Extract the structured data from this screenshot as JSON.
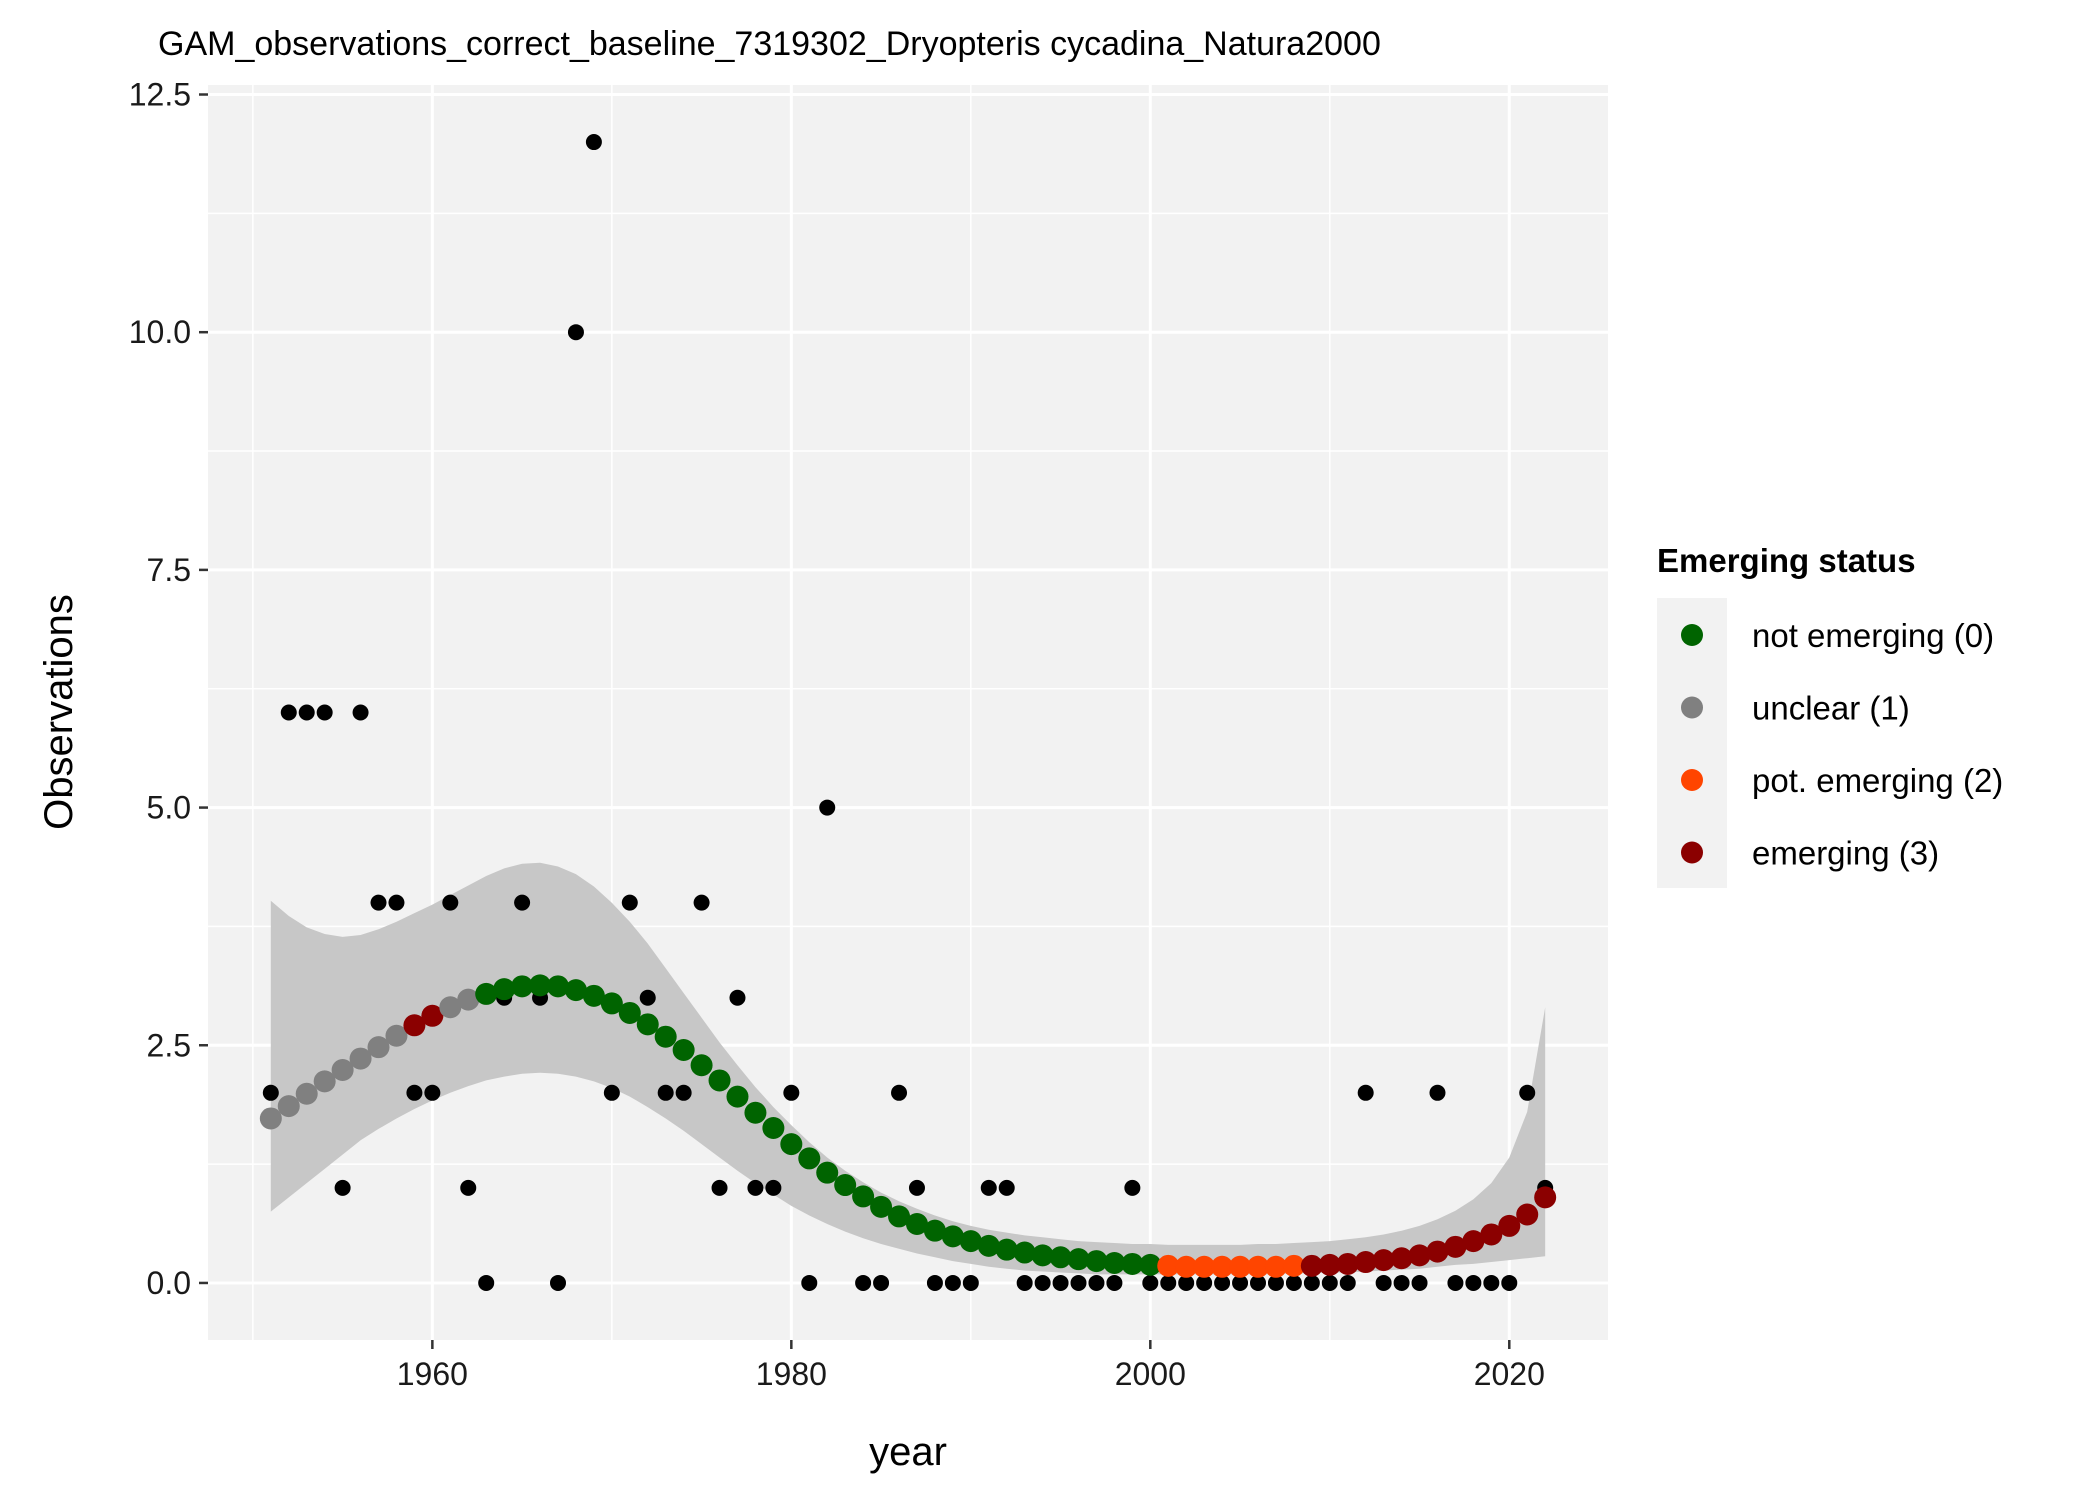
{
  "chart_data": {
    "type": "scatter",
    "title": "GAM_observations_correct_baseline_7319302_Dryopteris cycadina_Natura2000",
    "xlabel": "year",
    "ylabel": "Observations",
    "xlim": [
      1947.5,
      2025.5
    ],
    "ylim": [
      -0.6,
      12.6
    ],
    "x_ticks": [
      1960,
      1980,
      2000,
      2020
    ],
    "x_tick_labels": [
      "1960",
      "1980",
      "2000",
      "2020"
    ],
    "y_ticks": [
      0,
      2.5,
      5,
      7.5,
      10,
      12.5
    ],
    "y_tick_labels": [
      "0.0",
      "2.5",
      "5.0",
      "7.5",
      "10.0",
      "12.5"
    ],
    "grid": true,
    "panel_color": "#f2f2f2",
    "grid_color": "#ffffff",
    "observations": {
      "color": "#000000",
      "x": [
        1951,
        1952,
        1953,
        1954,
        1955,
        1956,
        1957,
        1958,
        1959,
        1960,
        1961,
        1962,
        1963,
        1964,
        1965,
        1966,
        1967,
        1968,
        1969,
        1970,
        1971,
        1972,
        1973,
        1974,
        1975,
        1976,
        1977,
        1978,
        1979,
        1980,
        1981,
        1982,
        1983,
        1984,
        1985,
        1986,
        1987,
        1988,
        1989,
        1990,
        1991,
        1992,
        1993,
        1994,
        1995,
        1996,
        1997,
        1998,
        1999,
        2000,
        2001,
        2002,
        2003,
        2004,
        2005,
        2006,
        2007,
        2008,
        2009,
        2010,
        2011,
        2012,
        2013,
        2014,
        2015,
        2016,
        2017,
        2018,
        2019,
        2020,
        2021,
        2022
      ],
      "y": [
        2,
        6,
        6,
        6,
        1,
        6,
        4,
        4,
        2,
        2,
        4,
        1,
        0,
        3,
        4,
        3,
        0,
        10,
        12,
        2,
        4,
        3,
        2,
        2,
        4,
        1,
        3,
        1,
        1,
        2,
        0,
        5,
        1,
        0,
        0,
        2,
        1,
        0,
        0,
        0,
        1,
        1,
        0,
        0,
        0,
        0,
        0,
        0,
        1,
        0,
        0,
        0,
        0,
        0,
        0,
        0,
        0,
        0,
        0,
        0,
        0,
        2,
        0,
        0,
        0,
        2,
        0,
        0,
        0,
        0,
        2,
        1
      ]
    },
    "gam_fit": {
      "x": [
        1951,
        1952,
        1953,
        1954,
        1955,
        1956,
        1957,
        1958,
        1959,
        1960,
        1961,
        1962,
        1963,
        1964,
        1965,
        1966,
        1967,
        1968,
        1969,
        1970,
        1971,
        1972,
        1973,
        1974,
        1975,
        1976,
        1977,
        1978,
        1979,
        1980,
        1981,
        1982,
        1983,
        1984,
        1985,
        1986,
        1987,
        1988,
        1989,
        1990,
        1991,
        1992,
        1993,
        1994,
        1995,
        1996,
        1997,
        1998,
        1999,
        2000,
        2001,
        2002,
        2003,
        2004,
        2005,
        2006,
        2007,
        2008,
        2009,
        2010,
        2011,
        2012,
        2013,
        2014,
        2015,
        2016,
        2017,
        2018,
        2019,
        2020,
        2021,
        2022
      ],
      "y": [
        1.73,
        1.86,
        1.99,
        2.12,
        2.24,
        2.36,
        2.48,
        2.6,
        2.71,
        2.81,
        2.9,
        2.98,
        3.04,
        3.09,
        3.12,
        3.13,
        3.12,
        3.08,
        3.02,
        2.94,
        2.84,
        2.72,
        2.59,
        2.45,
        2.29,
        2.13,
        1.96,
        1.79,
        1.63,
        1.46,
        1.31,
        1.16,
        1.03,
        0.91,
        0.8,
        0.7,
        0.62,
        0.55,
        0.49,
        0.44,
        0.39,
        0.35,
        0.32,
        0.29,
        0.27,
        0.25,
        0.23,
        0.21,
        0.2,
        0.19,
        0.18,
        0.17,
        0.17,
        0.17,
        0.17,
        0.17,
        0.17,
        0.18,
        0.18,
        0.19,
        0.2,
        0.22,
        0.24,
        0.26,
        0.29,
        0.33,
        0.38,
        0.44,
        0.51,
        0.6,
        0.72,
        0.9
      ],
      "status": [
        1,
        1,
        1,
        1,
        1,
        1,
        1,
        1,
        3,
        3,
        1,
        1,
        0,
        0,
        0,
        0,
        0,
        0,
        0,
        0,
        0,
        0,
        0,
        0,
        0,
        0,
        0,
        0,
        0,
        0,
        0,
        0,
        0,
        0,
        0,
        0,
        0,
        0,
        0,
        0,
        0,
        0,
        0,
        0,
        0,
        0,
        0,
        0,
        0,
        0,
        2,
        2,
        2,
        2,
        2,
        2,
        2,
        2,
        3,
        3,
        3,
        3,
        3,
        3,
        3,
        3,
        3,
        3,
        3,
        3,
        3,
        3
      ]
    },
    "confidence_band": {
      "color": "#c7c7c7",
      "x": [
        1951,
        1952,
        1953,
        1954,
        1955,
        1956,
        1957,
        1958,
        1959,
        1960,
        1961,
        1962,
        1963,
        1964,
        1965,
        1966,
        1967,
        1968,
        1969,
        1970,
        1971,
        1972,
        1973,
        1974,
        1975,
        1976,
        1977,
        1978,
        1979,
        1980,
        1981,
        1982,
        1983,
        1984,
        1985,
        1986,
        1987,
        1988,
        1989,
        1990,
        1991,
        1992,
        1993,
        1994,
        1995,
        1996,
        1997,
        1998,
        1999,
        2000,
        2001,
        2002,
        2003,
        2004,
        2005,
        2006,
        2007,
        2008,
        2009,
        2010,
        2011,
        2012,
        2013,
        2014,
        2015,
        2016,
        2017,
        2018,
        2019,
        2020,
        2021,
        2022
      ],
      "lower": [
        0.75,
        0.9,
        1.05,
        1.2,
        1.35,
        1.5,
        1.62,
        1.73,
        1.83,
        1.92,
        2,
        2.07,
        2.13,
        2.17,
        2.2,
        2.21,
        2.2,
        2.17,
        2.12,
        2.05,
        1.96,
        1.85,
        1.73,
        1.6,
        1.46,
        1.32,
        1.18,
        1.05,
        0.93,
        0.81,
        0.71,
        0.62,
        0.54,
        0.47,
        0.41,
        0.36,
        0.31,
        0.27,
        0.23,
        0.2,
        0.17,
        0.15,
        0.13,
        0.12,
        0.11,
        0.1,
        0.09,
        0.09,
        0.09,
        0.09,
        0.09,
        0.09,
        0.09,
        0.09,
        0.09,
        0.09,
        0.09,
        0.1,
        0.1,
        0.11,
        0.11,
        0.12,
        0.13,
        0.14,
        0.15,
        0.17,
        0.19,
        0.2,
        0.22,
        0.24,
        0.26,
        0.28
      ],
      "upper": [
        4.02,
        3.86,
        3.74,
        3.67,
        3.64,
        3.66,
        3.72,
        3.8,
        3.89,
        3.98,
        4.08,
        4.18,
        4.28,
        4.36,
        4.41,
        4.42,
        4.38,
        4.3,
        4.17,
        4,
        3.8,
        3.57,
        3.31,
        3.05,
        2.79,
        2.53,
        2.29,
        2.06,
        1.85,
        1.66,
        1.48,
        1.32,
        1.18,
        1.06,
        0.95,
        0.86,
        0.78,
        0.71,
        0.65,
        0.6,
        0.56,
        0.53,
        0.5,
        0.48,
        0.46,
        0.44,
        0.43,
        0.42,
        0.41,
        0.41,
        0.4,
        0.4,
        0.4,
        0.4,
        0.4,
        0.41,
        0.41,
        0.42,
        0.43,
        0.44,
        0.46,
        0.48,
        0.51,
        0.55,
        0.6,
        0.67,
        0.76,
        0.88,
        1.05,
        1.32,
        1.8,
        2.9
      ]
    },
    "legend": {
      "title": "Emerging status",
      "placement": "right",
      "items": [
        {
          "label": "not emerging (0)",
          "color": "#006400"
        },
        {
          "label": "unclear (1)",
          "color": "#808080"
        },
        {
          "label": "pot. emerging (2)",
          "color": "#ff4500"
        },
        {
          "label": "emerging (3)",
          "color": "#8b0000"
        }
      ]
    }
  }
}
